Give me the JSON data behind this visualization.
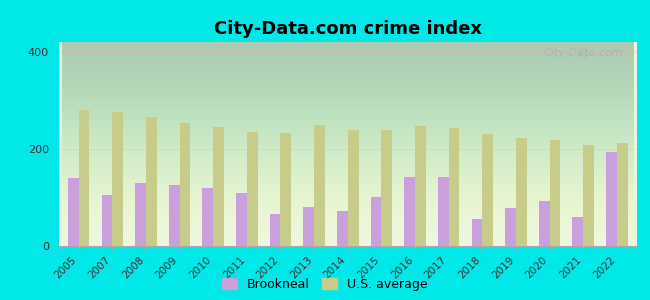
{
  "title": "City-Data.com crime index",
  "years": [
    2005,
    2007,
    2008,
    2009,
    2010,
    2011,
    2012,
    2013,
    2014,
    2015,
    2016,
    2017,
    2018,
    2019,
    2020,
    2021,
    2022
  ],
  "brookneal": [
    140,
    105,
    130,
    125,
    120,
    110,
    65,
    80,
    73,
    100,
    143,
    143,
    55,
    78,
    92,
    60,
    193
  ],
  "us_average": [
    280,
    275,
    265,
    253,
    245,
    235,
    232,
    250,
    238,
    238,
    248,
    243,
    230,
    222,
    218,
    208,
    212
  ],
  "brookneal_color": "#c9a0dc",
  "us_avg_color": "#c8cc8a",
  "background_outer": "#00e8e8",
  "ylim": [
    0,
    420
  ],
  "yticks": [
    0,
    200,
    400
  ],
  "title_fontsize": 13,
  "bar_width": 0.32,
  "watermark": "City-Data.com",
  "legend_labels": [
    "Brookneal",
    "U.S. average"
  ]
}
